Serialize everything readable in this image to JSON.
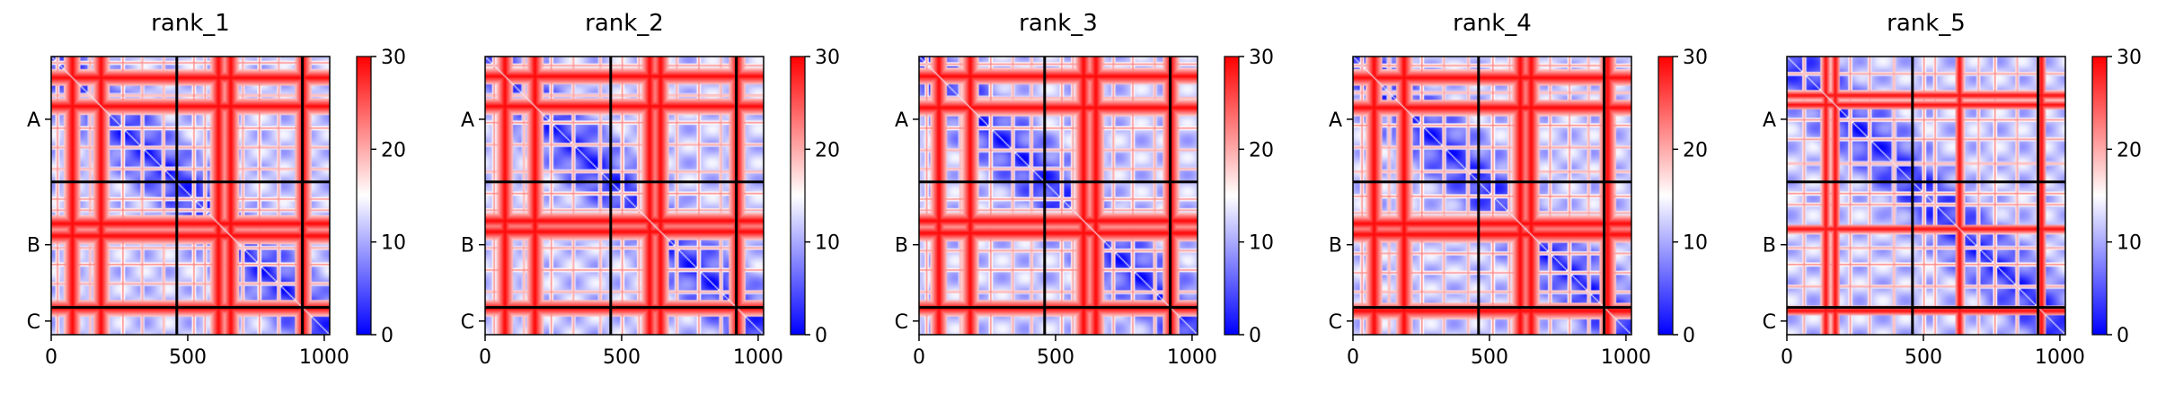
{
  "chart_data": {
    "type": "heatmap",
    "chains": {
      "labels": [
        "A",
        "B",
        "C"
      ],
      "boundaries": [
        460,
        920
      ],
      "length": 1020
    },
    "x_ticks": [
      0,
      500,
      1000
    ],
    "x_tick_labels": [
      "0",
      "500",
      "1000"
    ],
    "xlim": [
      0,
      1020
    ],
    "colorbar": {
      "min": 0,
      "max": 30,
      "ticks": [
        0,
        10,
        20,
        30
      ],
      "tick_labels": [
        "0",
        "10",
        "20",
        "30"
      ],
      "colormap": "bwr",
      "colors": [
        "#0000ff",
        "#ffffff",
        "#ff0000"
      ]
    },
    "panels": [
      {
        "title": "rank_1",
        "hot_lines": [
          75,
          180,
          610,
          655,
          920
        ],
        "warm_lines": [
          20,
          140,
          260,
          330,
          410,
          520,
          560,
          700,
          760,
          830
        ],
        "band_width": 30
      },
      {
        "title": "rank_2",
        "hot_lines": [
          70,
          180,
          600,
          640,
          920
        ],
        "warm_lines": [
          30,
          140,
          240,
          320,
          420,
          500,
          560,
          700,
          780,
          860
        ],
        "band_width": 30
      },
      {
        "title": "rank_3",
        "hot_lines": [
          70,
          185,
          600,
          645,
          920
        ],
        "warm_lines": [
          25,
          150,
          260,
          340,
          410,
          520,
          560,
          710,
          780,
          860
        ],
        "band_width": 30
      },
      {
        "title": "rank_4",
        "hot_lines": [
          75,
          185,
          610,
          650,
          930
        ],
        "warm_lines": [
          30,
          130,
          250,
          330,
          420,
          510,
          570,
          720,
          790,
          860
        ],
        "band_width": 30
      },
      {
        "title": "rank_5",
        "hot_lines": [
          140,
          175,
          630,
          930
        ],
        "warm_lines": [
          60,
          230,
          300,
          390,
          500,
          540,
          700,
          760,
          840
        ],
        "band_width": 18
      }
    ]
  }
}
